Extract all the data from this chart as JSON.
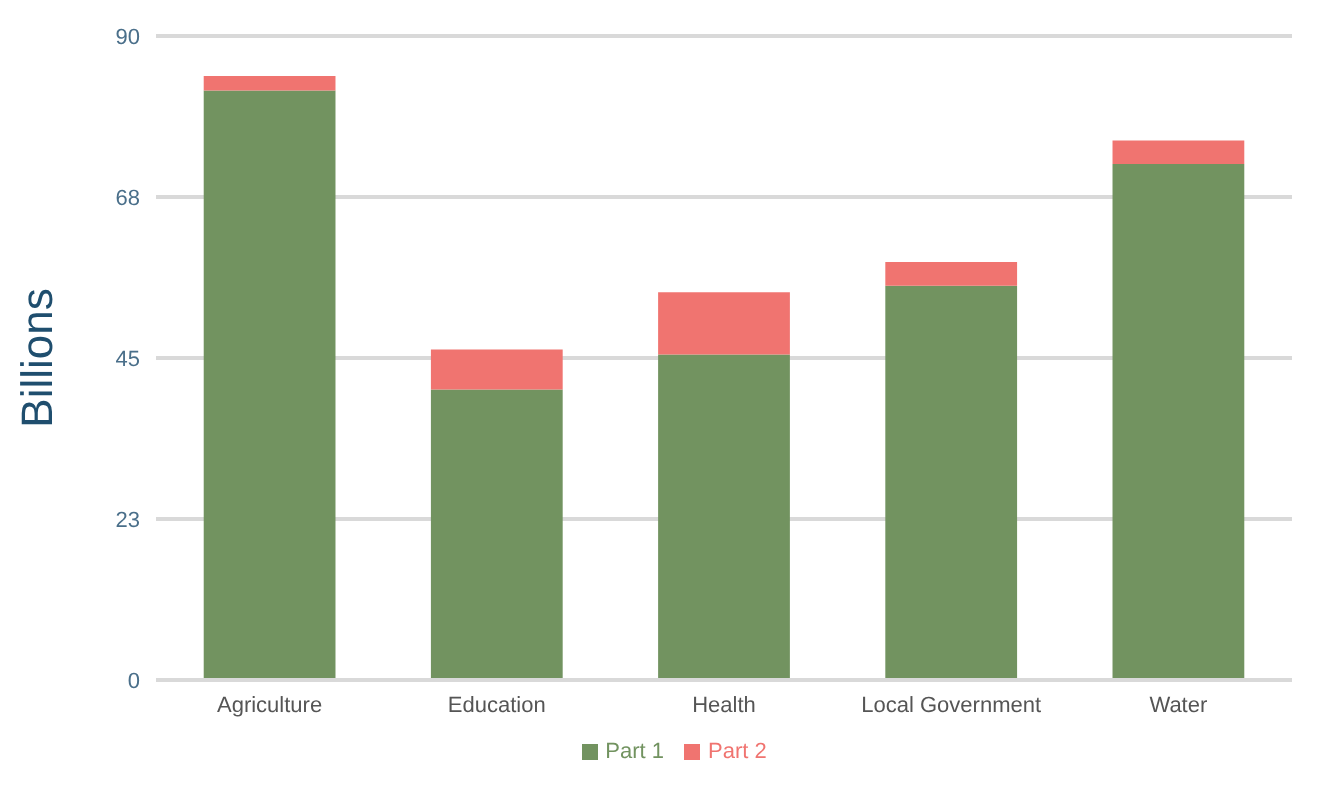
{
  "chart_data": {
    "type": "bar",
    "stacked": true,
    "ylabel": "Billions",
    "categories": [
      "Agriculture",
      "Education",
      "Health",
      "Local Government",
      "Water"
    ],
    "series": [
      {
        "name": "Part 1",
        "color": "#729360",
        "values": [
          82.4,
          40.6,
          45.5,
          55.1,
          72.1
        ]
      },
      {
        "name": "Part 2",
        "color": "#f07470",
        "values": [
          2.0,
          5.6,
          8.7,
          3.3,
          3.3
        ]
      }
    ],
    "ylim": [
      0,
      90
    ],
    "yticks": [
      0,
      {
        "value": 22.5,
        "label": "23"
      },
      45,
      {
        "value": 67.5,
        "label": "68"
      },
      90
    ],
    "grid": "y",
    "legend": "bottom"
  }
}
